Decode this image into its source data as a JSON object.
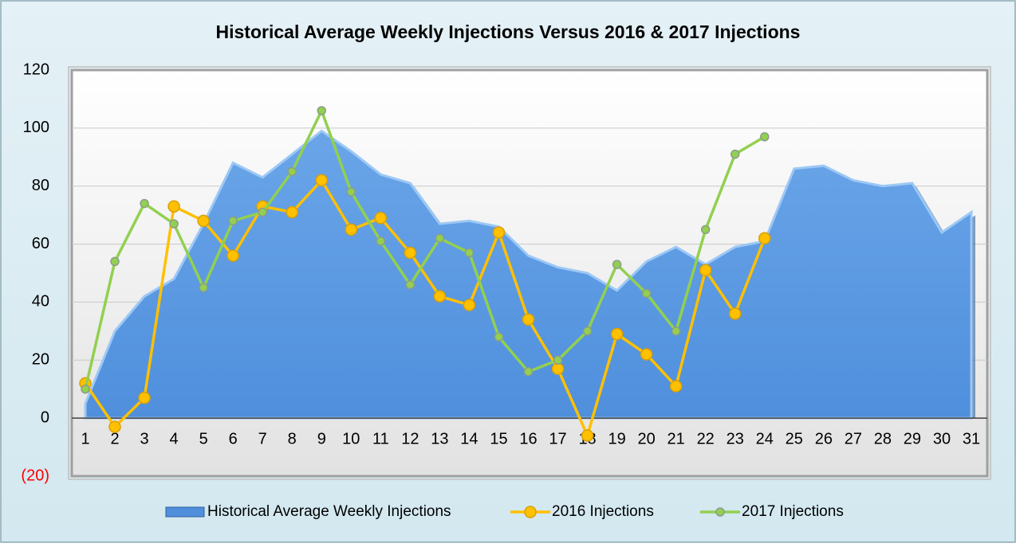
{
  "chart_data": {
    "type": "area-line",
    "title": "Historical Average Weekly Injections Versus 2016 & 2017 Injections",
    "categories": [
      "1",
      "2",
      "3",
      "4",
      "5",
      "6",
      "7",
      "8",
      "9",
      "10",
      "11",
      "12",
      "13",
      "14",
      "15",
      "16",
      "17",
      "18",
      "19",
      "20",
      "21",
      "22",
      "23",
      "24",
      "25",
      "26",
      "27",
      "28",
      "29",
      "30",
      "31"
    ],
    "series": [
      {
        "name": "Historical Average Weekly Injections",
        "type": "area",
        "color": "#4f8fdc",
        "values": [
          5,
          30,
          42,
          48,
          67,
          88,
          83,
          91,
          99,
          92,
          84,
          81,
          67,
          68,
          66,
          56,
          52,
          50,
          44,
          54,
          59,
          53,
          59,
          61,
          86,
          87,
          82,
          80,
          81,
          64,
          71
        ]
      },
      {
        "name": "2016 Injections",
        "type": "line",
        "color": "#ffc000",
        "values": [
          12,
          -3,
          7,
          73,
          68,
          56,
          73,
          71,
          82,
          65,
          69,
          57,
          42,
          39,
          64,
          34,
          17,
          -6,
          29,
          22,
          11,
          51,
          36,
          62,
          null,
          null,
          null,
          null,
          null,
          null,
          null
        ]
      },
      {
        "name": "2017 Injections",
        "type": "line",
        "color": "#92d050",
        "values": [
          10,
          54,
          74,
          67,
          45,
          68,
          71,
          85,
          106,
          78,
          61,
          46,
          62,
          57,
          28,
          16,
          20,
          30,
          53,
          43,
          30,
          65,
          91,
          97,
          null,
          null,
          null,
          null,
          null,
          null,
          null
        ]
      }
    ],
    "ylim": [
      -20,
      120
    ],
    "yticks": [
      {
        "value": -20,
        "label": "(20)"
      },
      0,
      20,
      40,
      60,
      80,
      100,
      120
    ],
    "negative_tick_color": "#ff0000",
    "grid": true,
    "legend": "bottom"
  }
}
